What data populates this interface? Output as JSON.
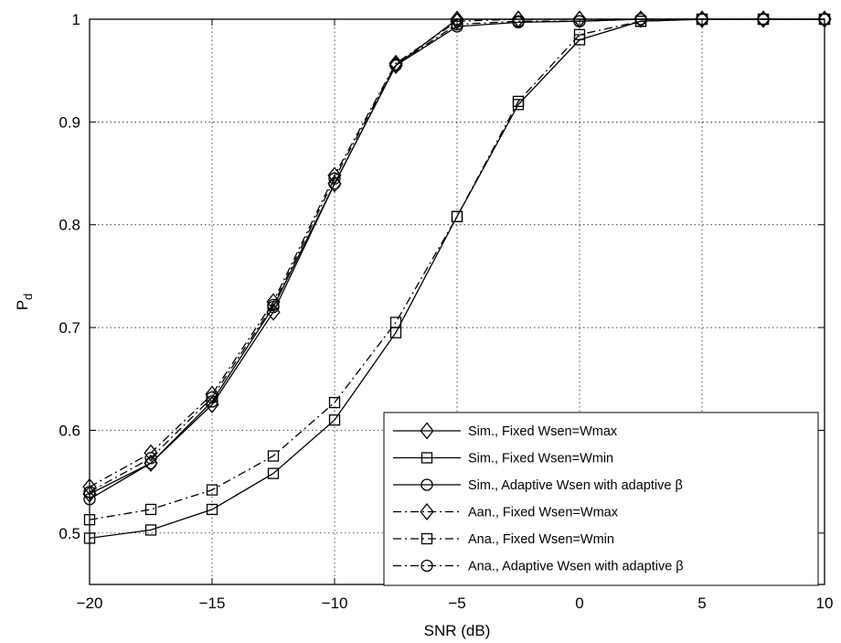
{
  "chart_data": {
    "type": "line",
    "xlabel": "SNR (dB)",
    "ylabel_main": "P",
    "ylabel_sub": "d",
    "xlim": [
      -20,
      10
    ],
    "ylim": [
      0.45,
      1.0
    ],
    "xticks": [
      -20,
      -15,
      -10,
      -5,
      0,
      5,
      10
    ],
    "xtick_labels": [
      "−20",
      "−15",
      "−10",
      "−5",
      "0",
      "5",
      "10"
    ],
    "yticks": [
      0.5,
      0.6,
      0.7,
      0.8,
      0.9,
      1.0
    ],
    "ytick_labels": [
      "0.5",
      "0.6",
      "0.7",
      "0.8",
      "0.9",
      "1"
    ],
    "grid": true,
    "legend_position": "bottom-right",
    "x": [
      -20,
      -17.5,
      -15,
      -12.5,
      -10,
      -7.5,
      -5,
      -2.5,
      0,
      2.5,
      5,
      7.5,
      10
    ],
    "series": [
      {
        "name": "Sim., Fixed Wsen=Wmax",
        "marker": "diamond",
        "line": "solid",
        "values": [
          0.538,
          0.568,
          0.625,
          0.715,
          0.84,
          0.955,
          1.0,
          1.0,
          1.0,
          1.0,
          1.0,
          1.0,
          1.0
        ]
      },
      {
        "name": "Sim., Fixed Wsen=Wmin",
        "marker": "square",
        "line": "solid",
        "values": [
          0.495,
          0.503,
          0.523,
          0.558,
          0.61,
          0.695,
          0.808,
          0.917,
          0.98,
          0.998,
          1.0,
          1.0,
          1.0
        ]
      },
      {
        "name": "Sim., Adaptive Wsen with adaptive β",
        "marker": "circle",
        "line": "solid",
        "values": [
          0.533,
          0.568,
          0.628,
          0.72,
          0.84,
          0.955,
          0.993,
          0.997,
          0.998,
          1.0,
          1.0,
          1.0,
          1.0
        ]
      },
      {
        "name": "Aan., Fixed Wsen=Wmax",
        "marker": "diamond",
        "line": "dashdot",
        "values": [
          0.545,
          0.578,
          0.635,
          0.725,
          0.848,
          0.957,
          0.998,
          1.0,
          1.0,
          1.0,
          1.0,
          1.0,
          1.0
        ]
      },
      {
        "name": "Ana., Fixed Wsen=Wmin",
        "marker": "square",
        "line": "dashdot",
        "values": [
          0.513,
          0.523,
          0.542,
          0.575,
          0.627,
          0.705,
          0.808,
          0.92,
          0.985,
          0.998,
          1.0,
          1.0,
          1.0
        ]
      },
      {
        "name": "Ana., Adaptive Wsen with adaptive β",
        "marker": "circle",
        "line": "dashdot",
        "values": [
          0.54,
          0.573,
          0.632,
          0.722,
          0.845,
          0.956,
          0.995,
          0.998,
          0.998,
          1.0,
          1.0,
          1.0,
          1.0
        ]
      }
    ]
  }
}
